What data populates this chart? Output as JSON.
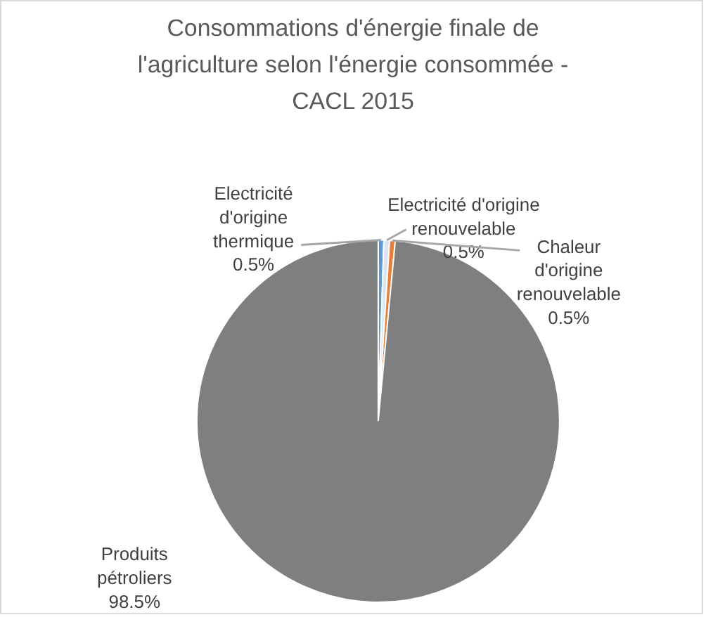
{
  "chart_data": {
    "type": "pie",
    "title": "Consommations d'énergie finale de l'agriculture selon l'énergie consommée - CACL 2015",
    "categories": [
      "Electricité d'origine thermique",
      "Electricité d'origine renouvelable",
      "Chaleur d'origine renouvelable",
      "Produits pétroliers"
    ],
    "values": [
      0.5,
      0.5,
      0.5,
      98.5
    ],
    "value_labels": [
      "0.5%",
      "0.5%",
      "0.5%",
      "98.5%"
    ],
    "colors": [
      "#5b9bd5",
      "#dae3f3",
      "#ed7d31",
      "#7f7f7f"
    ],
    "legend": false
  }
}
